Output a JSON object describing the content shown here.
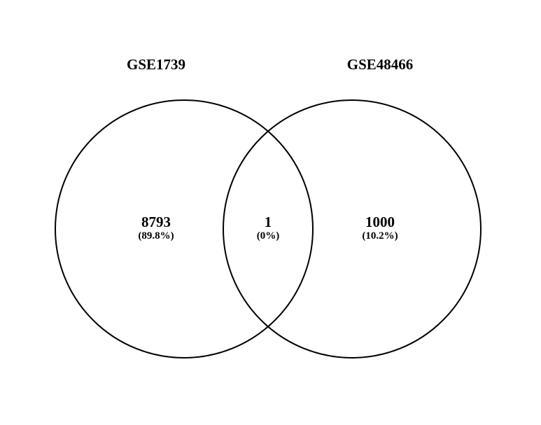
{
  "diagram": {
    "type": "venn",
    "stroke_color": "#000000",
    "background_color": "#ffffff",
    "sets": [
      {
        "label": "GSE1739"
      },
      {
        "label": "GSE48466"
      }
    ],
    "regions": {
      "left_only": {
        "count": "8793",
        "percent": "(89.8%)"
      },
      "overlap": {
        "count": "1",
        "percent": "(0%)"
      },
      "right_only": {
        "count": "1000",
        "percent": "(10.2%)"
      }
    }
  }
}
